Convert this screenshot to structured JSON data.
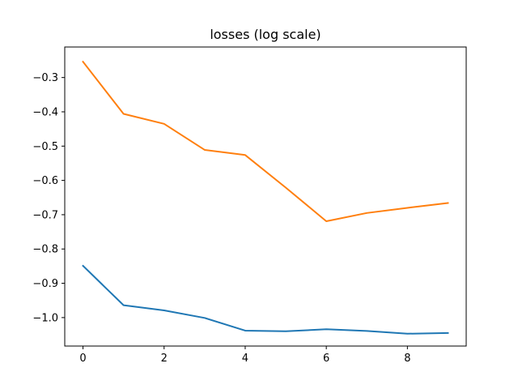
{
  "chart_data": {
    "type": "line",
    "title": "losses (log scale)",
    "xlabel": "",
    "ylabel": "",
    "x": [
      0,
      1,
      2,
      3,
      4,
      5,
      6,
      7,
      8,
      9
    ],
    "xlim": [
      -0.45,
      9.45
    ],
    "ylim": [
      -1.083,
      -0.211
    ],
    "x_ticks": [
      0,
      2,
      4,
      6,
      8
    ],
    "x_tick_labels": [
      "0",
      "2",
      "4",
      "6",
      "8"
    ],
    "y_ticks": [
      -1.0,
      -0.9,
      -0.8,
      -0.7,
      -0.6,
      -0.5,
      -0.4,
      -0.3
    ],
    "y_tick_labels": [
      "−1.0",
      "−0.9",
      "−0.8",
      "−0.7",
      "−0.6",
      "−0.5",
      "−0.4",
      "−0.3"
    ],
    "grid": false,
    "legend": "none",
    "series": [
      {
        "color": "#1f77b4",
        "values": [
          -0.849,
          -0.964,
          -0.979,
          -1.001,
          -1.038,
          -1.04,
          -1.034,
          -1.039,
          -1.047,
          -1.045
        ]
      },
      {
        "color": "#ff7f0e",
        "values": [
          -0.254,
          -0.406,
          -0.435,
          -0.511,
          -0.526,
          -0.621,
          -0.719,
          -0.695,
          -0.68,
          -0.666
        ]
      }
    ]
  }
}
